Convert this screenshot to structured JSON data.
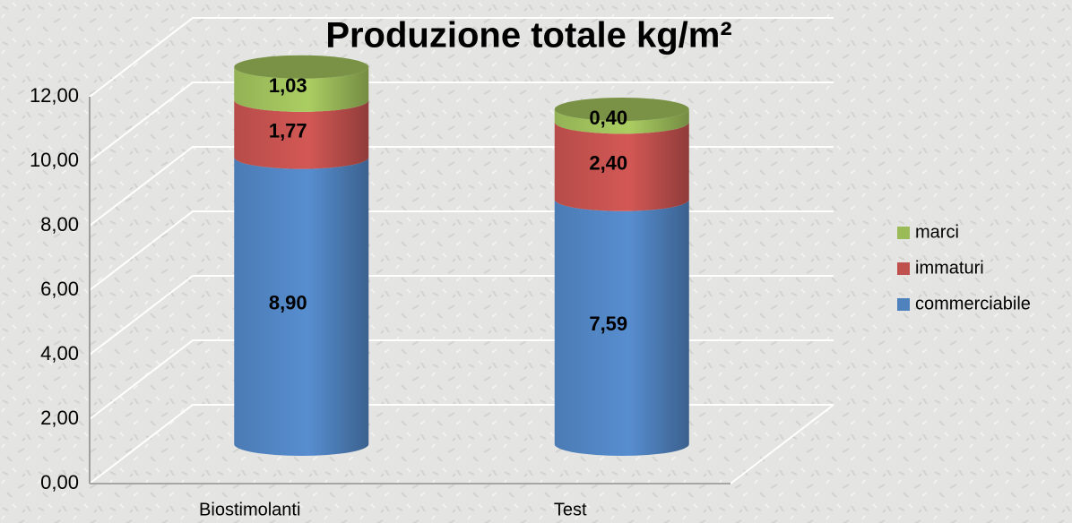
{
  "chart_data": {
    "type": "bar3d-stacked",
    "title": "Produzione totale kg/m²",
    "categories": [
      "Biostimolanti",
      "Test"
    ],
    "series": [
      {
        "name": "commerciabile",
        "color": "#4f81bd",
        "values": [
          8.9,
          7.59
        ],
        "value_labels": [
          "8,90",
          "7,59"
        ]
      },
      {
        "name": "immaturi",
        "color": "#c0504d",
        "values": [
          1.77,
          2.4
        ],
        "value_labels": [
          "1,77",
          "2,40"
        ]
      },
      {
        "name": "marci",
        "color": "#9bbb59",
        "values": [
          1.03,
          0.4
        ],
        "value_labels": [
          "1,03",
          "0,40"
        ]
      }
    ],
    "ylim": [
      0,
      12
    ],
    "yticks": [
      {
        "value": 0,
        "label": "0,00"
      },
      {
        "value": 2,
        "label": "2,00"
      },
      {
        "value": 4,
        "label": "4,00"
      },
      {
        "value": 6,
        "label": "6,00"
      },
      {
        "value": 8,
        "label": "8,00"
      },
      {
        "value": 10,
        "label": "10,00"
      },
      {
        "value": 12,
        "label": "12,00"
      }
    ],
    "grid": true,
    "legend": "right"
  }
}
